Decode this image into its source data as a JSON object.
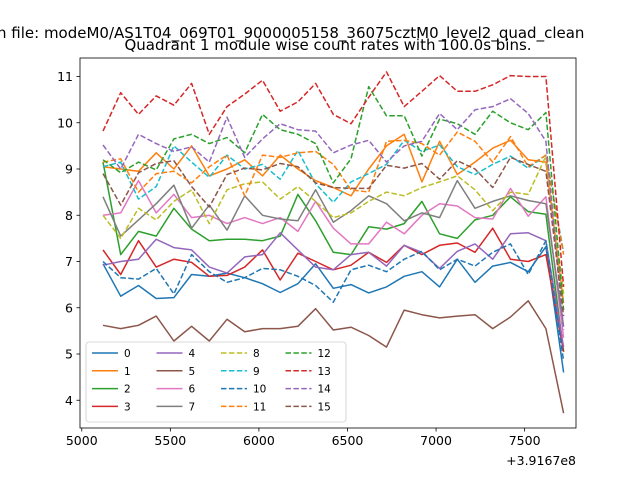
{
  "chart_data": {
    "type": "line",
    "suptitle": "n file: modeM0/AS1T04_069T01_9000005158_36075cztM0_level2_quad_clean",
    "title": "Quadrant 1 module wise count rates with 100.0s bins.",
    "xlabel": "",
    "ylabel": "",
    "x_offset_label": "+3.9167e8",
    "xlim": [
      4990,
      7790
    ],
    "ylim": [
      3.4,
      11.4
    ],
    "xticks": [
      5000,
      5500,
      6000,
      6500,
      7000,
      7500
    ],
    "yticks": [
      4,
      5,
      6,
      7,
      8,
      9,
      10,
      11
    ],
    "grid": false,
    "legend_position": "lower-left",
    "legend_columns": 4,
    "x": [
      5120,
      5220,
      5320,
      5420,
      5520,
      5620,
      5720,
      5820,
      5920,
      6020,
      6120,
      6220,
      6320,
      6420,
      6520,
      6620,
      6720,
      6820,
      6920,
      7020,
      7120,
      7220,
      7320,
      7420,
      7520,
      7620,
      7720
    ],
    "series": [
      {
        "name": "0",
        "color": "#1f77b4",
        "dash": "solid",
        "values": [
          6.95,
          6.25,
          6.48,
          6.2,
          6.22,
          6.72,
          6.68,
          6.75,
          6.65,
          6.52,
          6.33,
          6.52,
          6.95,
          6.42,
          6.5,
          6.32,
          6.45,
          6.68,
          6.78,
          6.45,
          7.05,
          6.55,
          6.9,
          6.98,
          6.78,
          7.32,
          4.6
        ]
      },
      {
        "name": "1",
        "color": "#ff7f0e",
        "dash": "solid",
        "values": [
          9.05,
          9.0,
          8.95,
          9.35,
          9.0,
          9.5,
          8.85,
          9.0,
          9.2,
          8.85,
          9.3,
          9.0,
          8.75,
          8.6,
          8.42,
          9.0,
          9.5,
          9.75,
          8.72,
          9.6,
          8.88,
          9.15,
          9.45,
          9.62,
          9.2,
          9.15,
          6.1
        ]
      },
      {
        "name": "2",
        "color": "#2ca02c",
        "dash": "solid",
        "values": [
          9.15,
          7.15,
          7.65,
          7.55,
          8.15,
          7.7,
          7.45,
          7.48,
          7.48,
          7.45,
          7.55,
          8.45,
          7.88,
          7.2,
          7.15,
          7.75,
          7.7,
          7.82,
          8.3,
          7.6,
          7.5,
          7.9,
          8.0,
          8.4,
          8.08,
          8.02,
          5.05
        ]
      },
      {
        "name": "3",
        "color": "#d62728",
        "dash": "solid",
        "values": [
          7.25,
          6.72,
          7.45,
          6.88,
          7.05,
          6.98,
          6.68,
          6.7,
          6.88,
          7.25,
          6.6,
          7.18,
          7.0,
          6.82,
          6.92,
          7.2,
          6.98,
          7.35,
          7.15,
          7.35,
          7.4,
          7.2,
          7.72,
          7.05,
          7.0,
          7.15,
          5.05
        ]
      },
      {
        "name": "4",
        "color": "#9467bd",
        "dash": "solid",
        "values": [
          6.92,
          7.0,
          7.05,
          7.48,
          7.3,
          7.25,
          6.88,
          6.75,
          7.1,
          7.15,
          7.62,
          7.25,
          6.88,
          6.82,
          7.15,
          7.2,
          6.9,
          7.35,
          7.2,
          6.85,
          7.22,
          7.38,
          7.05,
          7.6,
          7.62,
          7.45,
          5.15
        ]
      },
      {
        "name": "5",
        "color": "#8c564b",
        "dash": "solid",
        "values": [
          5.62,
          5.55,
          5.62,
          5.82,
          5.28,
          5.6,
          5.28,
          5.75,
          5.48,
          5.55,
          5.55,
          5.6,
          5.98,
          5.52,
          5.58,
          5.4,
          5.15,
          5.95,
          5.85,
          5.78,
          5.82,
          5.85,
          5.55,
          5.8,
          6.15,
          5.55,
          3.72
        ]
      },
      {
        "name": "6",
        "color": "#e377c2",
        "dash": "solid",
        "values": [
          8.0,
          8.05,
          8.75,
          8.05,
          8.45,
          7.95,
          8.0,
          7.82,
          7.95,
          7.82,
          7.95,
          7.65,
          8.3,
          7.72,
          7.38,
          7.38,
          7.85,
          7.6,
          8.0,
          8.25,
          8.2,
          7.95,
          7.92,
          8.58,
          7.98,
          8.4,
          5.35
        ]
      },
      {
        "name": "7",
        "color": "#7f7f7f",
        "dash": "solid",
        "values": [
          8.4,
          7.55,
          7.9,
          8.25,
          8.65,
          7.72,
          8.22,
          7.68,
          8.42,
          8.0,
          7.92,
          7.88,
          8.55,
          7.85,
          8.1,
          8.42,
          8.25,
          7.88,
          8.05,
          7.95,
          8.75,
          8.15,
          8.3,
          8.42,
          8.32,
          8.25,
          5.6
        ]
      },
      {
        "name": "8",
        "color": "#bcbd22",
        "dash": "dashed",
        "values": [
          8.0,
          7.5,
          8.15,
          7.9,
          8.3,
          8.55,
          7.82,
          8.55,
          8.68,
          8.72,
          8.35,
          8.62,
          8.3,
          7.95,
          8.05,
          8.3,
          8.5,
          8.42,
          8.6,
          8.72,
          8.85,
          8.55,
          8.1,
          8.5,
          8.45,
          9.28,
          6.3
        ]
      },
      {
        "name": "9",
        "color": "#17becf",
        "dash": "dashed",
        "values": [
          9.05,
          9.15,
          8.35,
          8.62,
          9.5,
          9.15,
          8.82,
          9.3,
          9.0,
          9.1,
          8.78,
          9.4,
          8.68,
          8.28,
          8.72,
          8.9,
          9.1,
          9.62,
          9.38,
          9.52,
          9.05,
          8.88,
          9.1,
          9.28,
          9.02,
          9.3,
          7.2
        ]
      },
      {
        "name": "10",
        "color": "#1f77b4",
        "dash": "dashed",
        "values": [
          7.0,
          6.65,
          6.62,
          6.85,
          6.3,
          7.15,
          6.78,
          6.55,
          6.65,
          6.85,
          6.82,
          6.68,
          6.48,
          6.12,
          6.82,
          6.92,
          6.78,
          7.05,
          7.22,
          6.82,
          7.05,
          6.9,
          7.2,
          7.38,
          6.72,
          7.45,
          4.85
        ]
      },
      {
        "name": "11",
        "color": "#ff7f0e",
        "dash": "dashed",
        "values": [
          9.15,
          9.22,
          8.5,
          8.9,
          8.95,
          8.7,
          9.05,
          9.3,
          8.42,
          9.3,
          9.25,
          9.35,
          9.38,
          9.1,
          8.55,
          8.5,
          9.6,
          9.62,
          9.55,
          9.3,
          9.8,
          9.6,
          9.15,
          9.7,
          9.05,
          9.3,
          7.15
        ]
      },
      {
        "name": "12",
        "color": "#2ca02c",
        "dash": "dashed",
        "values": [
          9.2,
          8.92,
          9.15,
          8.98,
          9.65,
          9.75,
          9.55,
          9.68,
          9.35,
          10.18,
          9.85,
          9.75,
          9.55,
          8.7,
          9.22,
          10.78,
          10.15,
          10.15,
          9.28,
          10.08,
          9.98,
          9.75,
          10.25,
          10.0,
          9.85,
          10.22,
          5.95
        ]
      },
      {
        "name": "13",
        "color": "#d62728",
        "dash": "dashed",
        "values": [
          9.82,
          10.65,
          10.18,
          10.58,
          10.38,
          10.85,
          9.75,
          10.35,
          10.62,
          10.92,
          10.25,
          10.45,
          10.85,
          10.18,
          9.98,
          10.55,
          11.1,
          10.35,
          10.68,
          11.02,
          10.68,
          10.68,
          10.82,
          11.02,
          11.0,
          11.0,
          6.45
        ]
      },
      {
        "name": "14",
        "color": "#9467bd",
        "dash": "dashed",
        "values": [
          9.52,
          9.0,
          9.75,
          9.55,
          9.38,
          9.48,
          9.15,
          10.12,
          9.25,
          9.65,
          9.98,
          9.85,
          9.82,
          9.35,
          9.52,
          9.62,
          9.15,
          9.5,
          9.6,
          10.2,
          9.85,
          10.28,
          10.35,
          10.52,
          10.2,
          9.6,
          5.52
        ]
      },
      {
        "name": "15",
        "color": "#8c564b",
        "dash": "dashed",
        "values": [
          8.9,
          8.22,
          8.92,
          9.12,
          9.18,
          8.62,
          8.18,
          8.88,
          9.02,
          8.98,
          9.12,
          9.05,
          8.7,
          8.6,
          8.58,
          8.58,
          9.08,
          9.02,
          9.12,
          8.78,
          9.18,
          9.0,
          8.6,
          9.25,
          9.1,
          8.95,
          5.82
        ]
      }
    ]
  }
}
